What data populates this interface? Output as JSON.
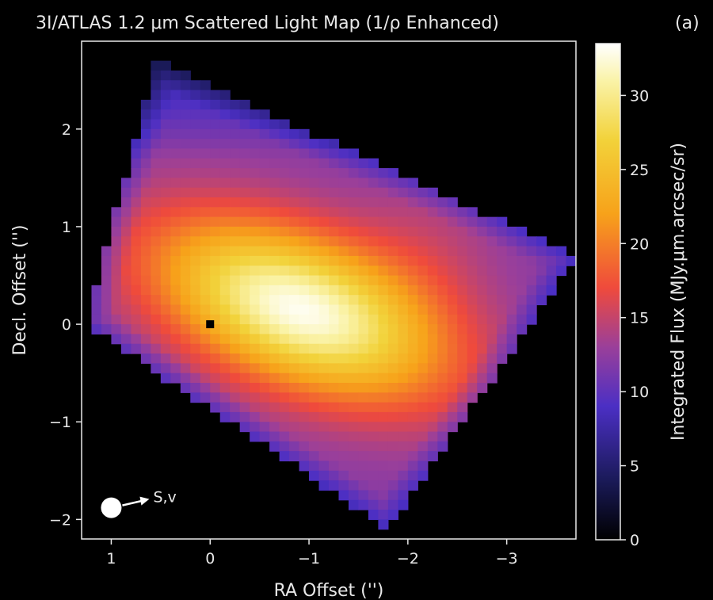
{
  "figure": {
    "title": "3I/ATLAS 1.2 μm Scattered Light Map (1/ρ Enhanced)",
    "panel_label": "(a)"
  },
  "chart_data": {
    "type": "heatmap",
    "title": "3I/ATLAS 1.2 μm Scattered Light Map (1/ρ Enhanced)",
    "xlabel": "RA Offset ('')",
    "ylabel": "Decl. Offset ('')",
    "xlim": [
      1.3,
      -3.7
    ],
    "ylim": [
      -2.2,
      2.9
    ],
    "x_ticks": [
      1,
      0,
      -1,
      -2,
      -3
    ],
    "x_tick_labels": [
      "1",
      "0",
      "−1",
      "−2",
      "−3"
    ],
    "y_ticks": [
      2,
      1,
      0,
      -1,
      -2
    ],
    "y_tick_labels": [
      "2",
      "1",
      "0",
      "−1",
      "−2"
    ],
    "grid": false,
    "colormap": "CMRmap",
    "colorbar": {
      "label": "Integrated Flux (MJy.μm.arcsec/sr)",
      "range": [
        0,
        33.5
      ],
      "ticks": [
        0,
        5,
        10,
        15,
        20,
        25,
        30
      ],
      "tick_labels": [
        "0",
        "5",
        "10",
        "15",
        "20",
        "25",
        "30"
      ]
    },
    "footprint": {
      "description": "rotated square mosaic footprint (data in RA/Dec offset arcsec)",
      "vertices": [
        [
          0.55,
          2.7
        ],
        [
          -3.7,
          0.7
        ],
        [
          -1.8,
          -2.1
        ],
        [
          1.25,
          0.0
        ]
      ]
    },
    "peak": {
      "x": -0.9,
      "y": 0.15,
      "value": 33
    },
    "nucleus_marker": {
      "x": 0.0,
      "y": 0.0
    },
    "sun_velocity_indicator": {
      "label": "S,v",
      "origin": [
        1.0,
        -1.88
      ],
      "direction": "toward -RA, slightly +Dec"
    },
    "color_stops": [
      {
        "value": 0,
        "color": "#000000"
      },
      {
        "value": 4,
        "color": "#1a1a58"
      },
      {
        "value": 9,
        "color": "#4b2fc4"
      },
      {
        "value": 13,
        "color": "#9a3f9a"
      },
      {
        "value": 17,
        "color": "#ef4a3c"
      },
      {
        "value": 22,
        "color": "#f7a21a"
      },
      {
        "value": 27,
        "color": "#f2d23a"
      },
      {
        "value": 31,
        "color": "#faf3a8"
      },
      {
        "value": 33.5,
        "color": "#ffffff"
      }
    ]
  }
}
